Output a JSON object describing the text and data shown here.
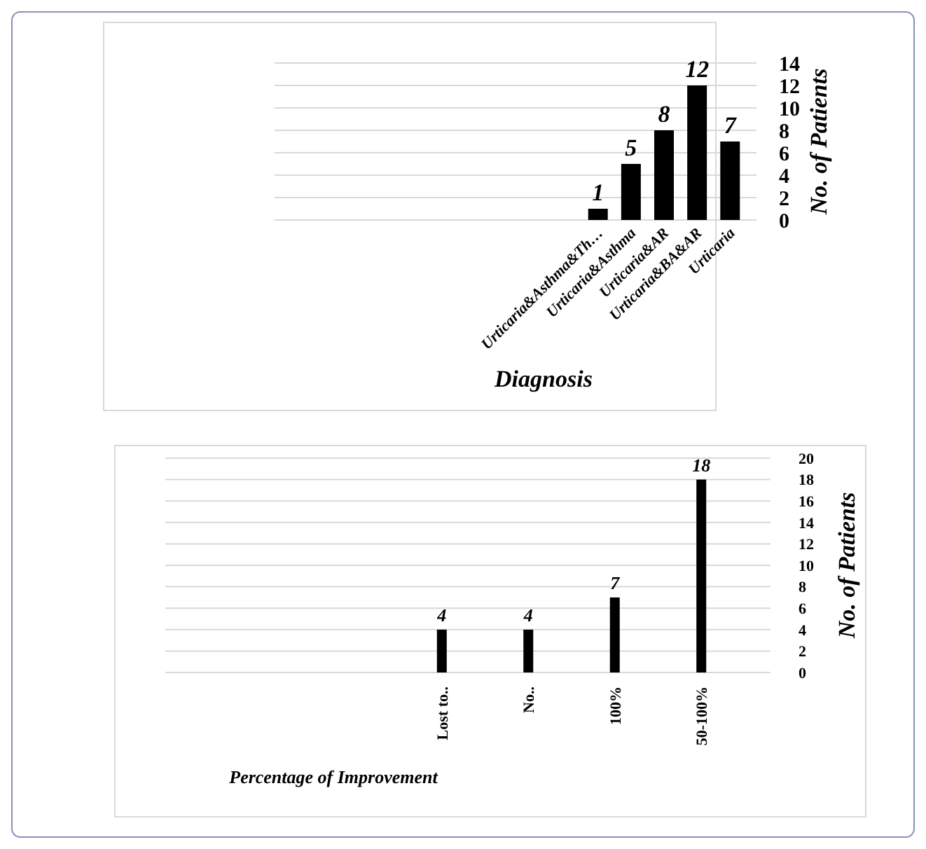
{
  "chart_data": [
    {
      "type": "bar",
      "categories": [
        "Urticaria&Asthma&Th…",
        "Urticaria&Asthma",
        "Urticaria&AR",
        "Urticaria&BA&AR",
        "Urticaria"
      ],
      "values": [
        1,
        5,
        8,
        12,
        7
      ],
      "color": "#000000",
      "xlabel": "Diagnosis",
      "ylabel": "No. of Patients",
      "ylim": [
        0,
        14
      ],
      "yticks": [
        0,
        2,
        4,
        6,
        8,
        10,
        12,
        14
      ],
      "grid": "y",
      "data_labels": true
    },
    {
      "type": "bar",
      "categories": [
        "Lost to..",
        "No..",
        "100%",
        "50-100%"
      ],
      "values": [
        4,
        4,
        7,
        18
      ],
      "color": "#000000",
      "xlabel": "Percentage of Improvement",
      "ylabel": "No. of Patients",
      "ylim": [
        0,
        20
      ],
      "yticks": [
        0,
        2,
        4,
        6,
        8,
        10,
        12,
        14,
        16,
        18,
        20
      ],
      "grid": "y",
      "data_labels": true
    }
  ]
}
